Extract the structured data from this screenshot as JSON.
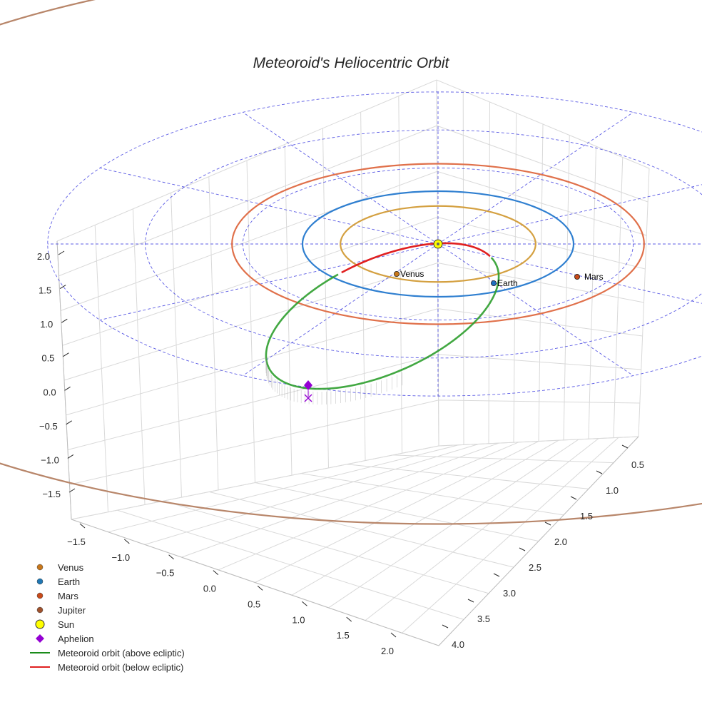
{
  "chart_data": {
    "type": "line3d",
    "title": "Meteoroid's Heliocentric Orbit",
    "xlabel": "",
    "ylabel": "",
    "zlabel": "",
    "x_ticks": [
      "−1.5",
      "−1.0",
      "−0.5",
      "0.0",
      "0.5",
      "1.0",
      "1.5",
      "2.0"
    ],
    "y_ticks": [
      "0.5",
      "1.0",
      "1.5",
      "2.0",
      "2.5",
      "3.0",
      "3.5",
      "4.0"
    ],
    "z_ticks": [
      "2.0",
      "1.5",
      "1.0",
      "0.5",
      "0.0",
      "−0.5",
      "−1.0",
      "−1.5"
    ],
    "planets": [
      {
        "name": "Venus",
        "orbit_radius_au": 0.72,
        "color": "#d4a040",
        "marker_color": "#c8771a",
        "label": "Venus"
      },
      {
        "name": "Earth",
        "orbit_radius_au": 1.0,
        "color": "#2f7fd0",
        "marker_color": "#1f6fbf",
        "label": "Earth"
      },
      {
        "name": "Mars",
        "orbit_radius_au": 1.52,
        "color": "#e0704a",
        "marker_color": "#c84a1a",
        "label": "Mars"
      },
      {
        "name": "Jupiter",
        "orbit_radius_au": 5.2,
        "color": "#b8866a",
        "marker_color": "#a0522d"
      }
    ],
    "meteoroid_orbit": {
      "above_ecliptic_color": "#2e9e2e",
      "below_ecliptic_color": "#e02020"
    },
    "reference_grid": {
      "ring_radii_au": [
        1.0,
        2.0,
        3.0,
        4.0
      ],
      "spokes": 12,
      "color": "#4040e0"
    },
    "legend": [
      {
        "label": "Venus",
        "kind": "dot",
        "color": "#c8771a"
      },
      {
        "label": "Earth",
        "kind": "dot",
        "color": "#1f77b4"
      },
      {
        "label": "Mars",
        "kind": "dot",
        "color": "#c84a1a"
      },
      {
        "label": "Jupiter",
        "kind": "dot",
        "color": "#a0522d"
      },
      {
        "label": "Sun",
        "kind": "sun",
        "color": "#ffff00"
      },
      {
        "label": "Aphelion",
        "kind": "diamond",
        "color": "#9400d3"
      },
      {
        "label": "Meteoroid orbit (above ecliptic)",
        "kind": "line",
        "color": "#1a8c1a"
      },
      {
        "label": "Meteoroid orbit (below ecliptic)",
        "kind": "line",
        "color": "#e02020"
      }
    ]
  }
}
